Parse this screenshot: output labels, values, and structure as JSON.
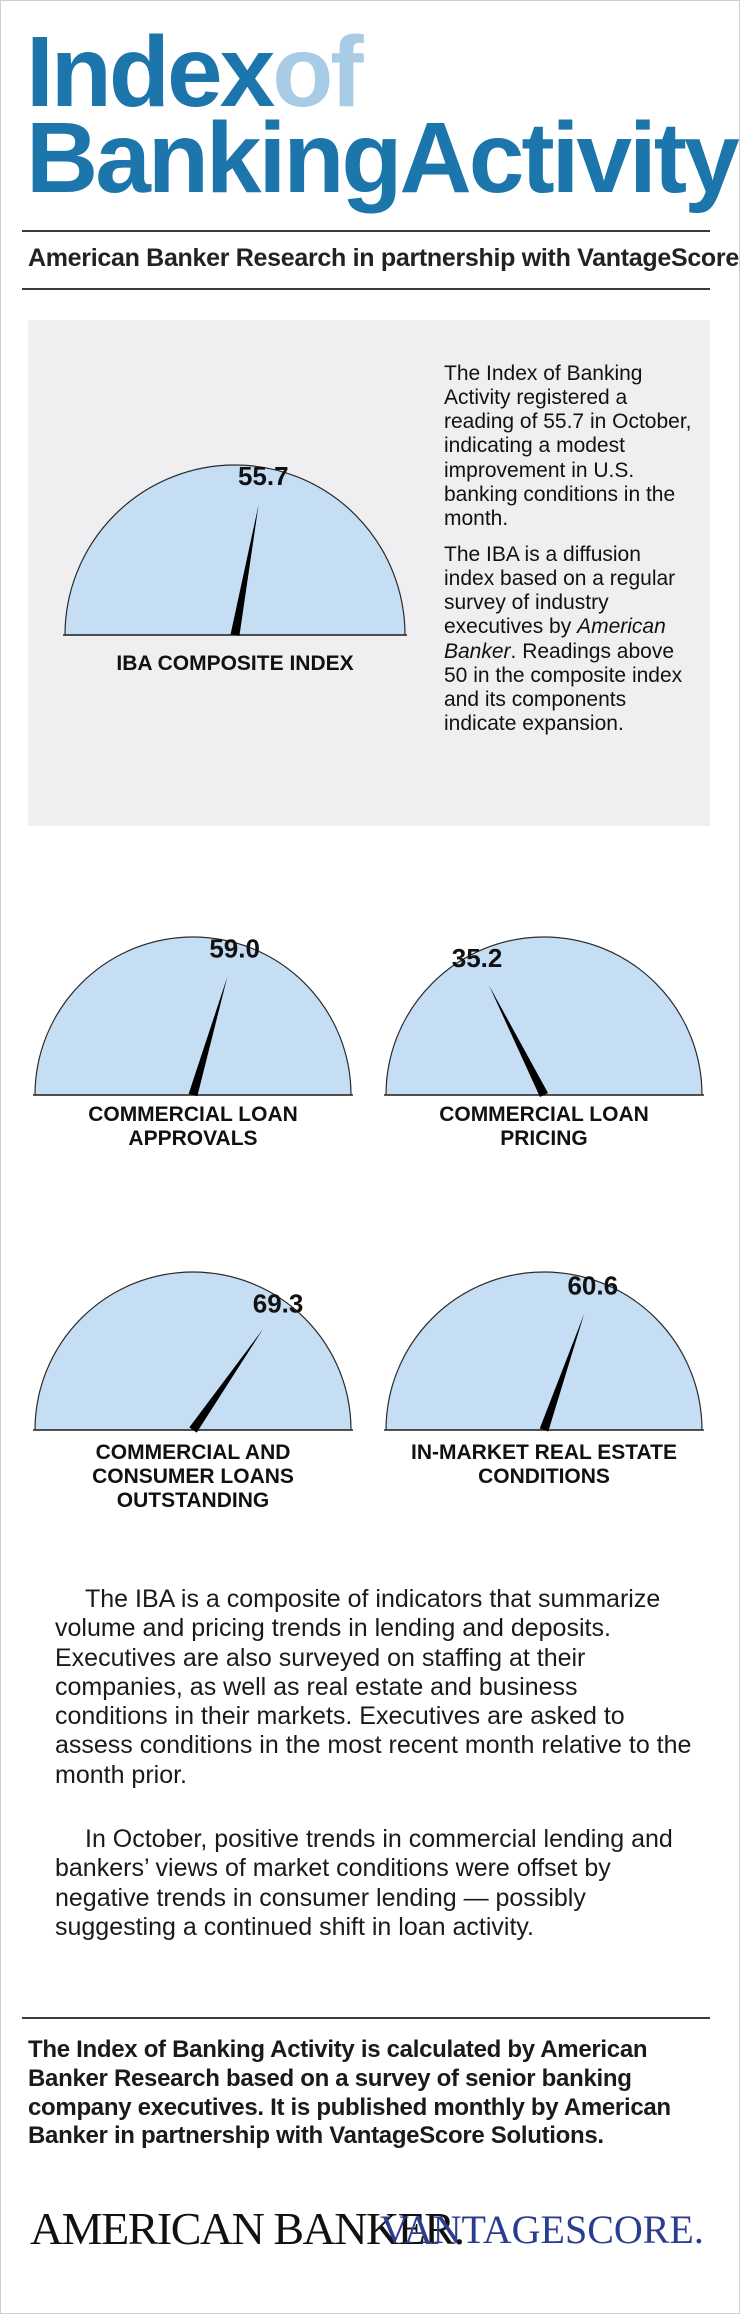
{
  "header": {
    "title_part1": "Index",
    "title_part2": "of",
    "title_line2": "BankingActivity",
    "subtitle": "American Banker Research in partnership with VantageScore"
  },
  "intro": {
    "para1": "The Index of Banking Activity registered a reading of 55.7 in October, indicating a modest improvement in U.S. banking conditions in the month.",
    "para2_before": "The IBA is a diffusion index based on a regular survey of industry executives by ",
    "para2_italic": "American Banker",
    "para2_after": ". Readings above 50 in the composite index and its components indicate expansion."
  },
  "chart_data": [
    {
      "type": "gauge",
      "id": "composite",
      "title": "IBA COMPOSITE INDEX",
      "value": 55.7,
      "value_label": "55.7",
      "range": [
        0,
        100
      ]
    },
    {
      "type": "gauge",
      "id": "approvals",
      "title": "COMMERCIAL LOAN APPROVALS",
      "title_lines": [
        "COMMERCIAL LOAN",
        "APPROVALS"
      ],
      "value": 59.0,
      "value_label": "59.0",
      "range": [
        0,
        100
      ]
    },
    {
      "type": "gauge",
      "id": "pricing",
      "title": "COMMERCIAL LOAN PRICING",
      "title_lines": [
        "COMMERCIAL LOAN",
        "PRICING"
      ],
      "value": 35.2,
      "value_label": "35.2",
      "range": [
        0,
        100
      ]
    },
    {
      "type": "gauge",
      "id": "outstanding",
      "title": "COMMERCIAL AND CONSUMER LOANS OUTSTANDING",
      "title_lines": [
        "COMMERCIAL AND",
        "CONSUMER LOANS",
        "OUTSTANDING"
      ],
      "value": 69.3,
      "value_label": "69.3",
      "range": [
        0,
        100
      ]
    },
    {
      "type": "gauge",
      "id": "realestate",
      "title": "IN-MARKET REAL ESTATE CONDITIONS",
      "title_lines": [
        "IN-MARKET REAL ESTATE",
        "CONDITIONS"
      ],
      "value": 60.6,
      "value_label": "60.6",
      "range": [
        0,
        100
      ]
    }
  ],
  "body": {
    "para1": "The IBA is a composite of indicators that summarize volume and pricing trends in lending and deposits. Executives are also surveyed on staffing at their companies, as well as real estate and business conditions in their markets. Executives are asked to assess conditions in the most recent month relative to the month prior.",
    "para2": "In October, positive trends in commercial lending and bankers’ views of market conditions were offset by negative trends in consumer lending — possibly suggesting a continued shift in loan activity."
  },
  "footer": {
    "text": "The Index of Banking Activity is calculated by American Banker Research based on a survey of senior banking company executives. It is published monthly by American Banker in partnership with VantageScore Solutions.",
    "logo_left": "AMERICAN BANKER.",
    "logo_right": "VANTAGESCORE."
  },
  "colors": {
    "title_blue": "#1c76ac",
    "title_light": "#a9cce6",
    "gauge_fill": "#c6def3",
    "panel_bg": "#efeff1",
    "vantage_blue": "#2a3d8f"
  }
}
